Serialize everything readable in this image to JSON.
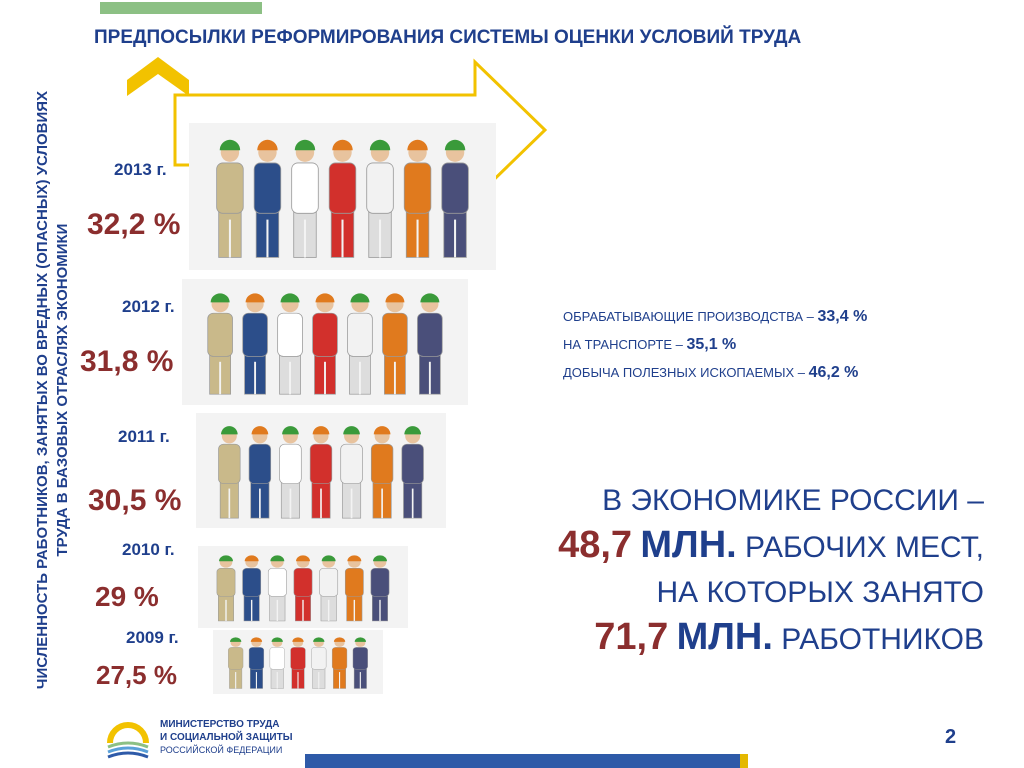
{
  "title": "ПРЕДПОСЫЛКИ РЕФОРМИРОВАНИЯ СИСТЕМЫ ОЦЕНКИ УСЛОВИЙ ТРУДА",
  "vertical_label": "ЧИСЛЕННОСТЬ РАБОТНИКОВ, ЗАНЯТЫХ ВО ВРЕДНЫХ (ОПАСНЫХ) УСЛОВИЯХ ТРУДА В БАЗОВЫХ ОТРАСЛЯХ ЭКОНОМИКИ",
  "years": [
    {
      "year": "2013 г.",
      "percent": "32,2 %",
      "value": 32.2
    },
    {
      "year": "2012 г.",
      "percent": "31,8 %",
      "value": 31.8
    },
    {
      "year": "2011 г.",
      "percent": "30,5 %",
      "value": 30.5
    },
    {
      "year": "2010 г.",
      "percent": "29 %",
      "value": 29
    },
    {
      "year": "2009 г.",
      "percent": "27,5 %",
      "value": 27.5
    }
  ],
  "stats": [
    {
      "label": "ОБРАБАТЫВАЮЩИЕ ПРОИЗВОДСТВА – ",
      "value": "33,4 %"
    },
    {
      "label": "НА ТРАНСПОРТЕ – ",
      "value": "35,1 %"
    },
    {
      "label": "ДОБЫЧА ПОЛЕЗНЫХ ИСКОПАЕМЫХ – ",
      "value": "46,2 %"
    }
  ],
  "summary": {
    "line1": "В ЭКОНОМИКЕ РОССИИ –",
    "jobs_number": "48,7",
    "jobs_unit": "МЛН.",
    "jobs_text": "РАБОЧИХ МЕСТ,",
    "line3": "НА КОТОРЫХ ЗАНЯТО",
    "workers_number": "71,7",
    "workers_unit": "МЛН.",
    "workers_text": "РАБОТНИКОВ"
  },
  "ministry": {
    "line1": "МИНИСТЕРСТВО ТРУДА",
    "line2": "И СОЦИАЛЬНОЙ ЗАЩИТЫ",
    "line3": "РОССИЙСКОЙ ФЕДЕРАЦИИ"
  },
  "page_number": "2",
  "colors": {
    "title_blue": "#1f3f8c",
    "percent_red": "#8b2e2e",
    "arrow_yellow": "#f2c200",
    "bar_green": "#8cc084",
    "bar_blue": "#2e5aa8"
  },
  "worker_outfits": [
    "#c9b98a",
    "#2c4e8a",
    "#ffffff",
    "#d2302c",
    "#f2f2f2",
    "#e07a1e",
    "#4a4f7a"
  ]
}
